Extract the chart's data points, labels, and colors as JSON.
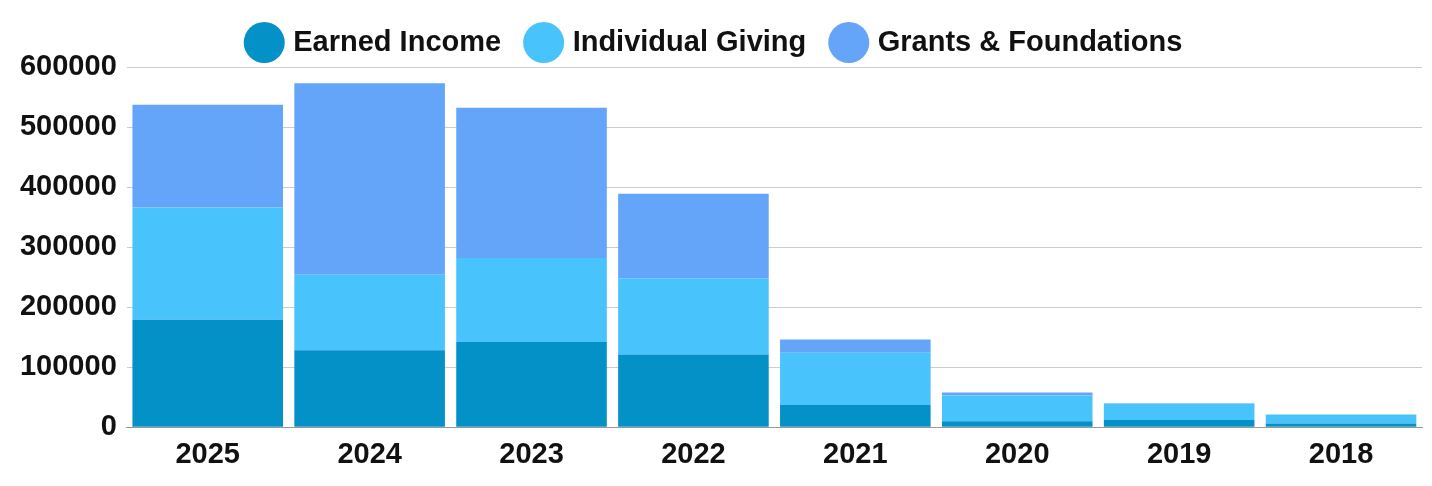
{
  "chart_data": {
    "type": "bar",
    "stacked": true,
    "categories": [
      "2025",
      "2024",
      "2023",
      "2022",
      "2021",
      "2020",
      "2019",
      "2018"
    ],
    "series": [
      {
        "name": "Earned Income",
        "color": "#0391c8",
        "values": [
          179000,
          128000,
          142000,
          121000,
          37000,
          10000,
          12000,
          6000
        ]
      },
      {
        "name": "Individual Giving",
        "color": "#48c3fc",
        "values": [
          187000,
          126000,
          140000,
          127000,
          87000,
          43000,
          27000,
          15000
        ]
      },
      {
        "name": "Grants & Foundations",
        "color": "#64a5f9",
        "values": [
          171000,
          319000,
          250000,
          141000,
          22000,
          5000,
          1000,
          0
        ]
      }
    ],
    "ylim": [
      0,
      600000
    ],
    "yticks": [
      0,
      100000,
      200000,
      300000,
      400000,
      500000,
      600000
    ],
    "grid": "y",
    "legend": "top"
  }
}
